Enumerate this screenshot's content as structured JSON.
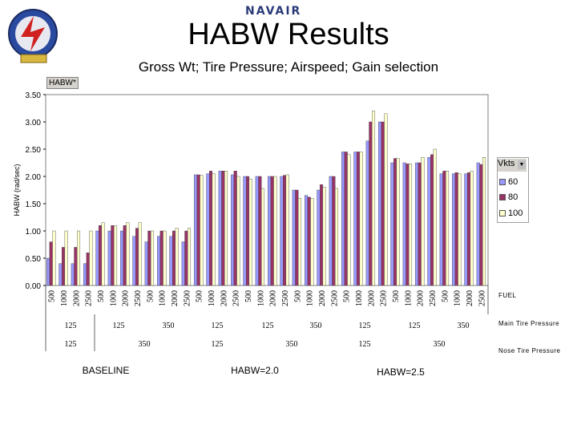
{
  "header": {
    "brand": "NAVAIR",
    "title": "HABW Results",
    "subtitle": "Gross Wt; Tire Pressure; Airspeed; Gain selection"
  },
  "controls": {
    "field_button": "HABW*",
    "legend_title": "Vkts"
  },
  "colors": {
    "s60": "#9999ff",
    "s80": "#993366",
    "s100": "#ffffcc"
  },
  "chart_data": {
    "type": "bar",
    "ylabel": "HABW (rad/sec)",
    "ylim": [
      0,
      3.5
    ],
    "yticks": [
      "0.00",
      "0.50",
      "1.00",
      "1.50",
      "2.00",
      "2.50",
      "3.00",
      "3.50"
    ],
    "categories": [
      "500",
      "1000",
      "2000",
      "2500",
      "500",
      "1000",
      "2000",
      "2500",
      "500",
      "1000",
      "2000",
      "2500",
      "500",
      "1000",
      "2000",
      "2500",
      "500",
      "1000",
      "2000",
      "2500",
      "500",
      "1000",
      "2000",
      "2500",
      "500",
      "1000",
      "2000",
      "2500",
      "500",
      "1000",
      "2000",
      "2500",
      "500",
      "1000",
      "2000",
      "2500"
    ],
    "series": [
      {
        "name": "60",
        "values": [
          0.5,
          0.4,
          0.4,
          0.4,
          1.0,
          1.0,
          1.0,
          0.9,
          0.8,
          0.9,
          0.9,
          0.8,
          2.03,
          2.05,
          2.1,
          2.03,
          2.0,
          2.0,
          2.0,
          2.0,
          1.75,
          1.65,
          1.75,
          2.0,
          2.45,
          2.45,
          2.65,
          3.0,
          2.25,
          2.25,
          2.25,
          2.35,
          2.05,
          2.05,
          2.05,
          2.25
        ]
      },
      {
        "name": "80",
        "values": [
          0.8,
          0.7,
          0.7,
          0.6,
          1.1,
          1.1,
          1.1,
          1.05,
          1.0,
          1.0,
          1.0,
          1.0,
          2.03,
          2.1,
          2.1,
          2.1,
          2.0,
          2.0,
          2.0,
          2.02,
          1.75,
          1.62,
          1.85,
          2.0,
          2.45,
          2.45,
          3.0,
          3.0,
          2.33,
          2.23,
          2.25,
          2.4,
          2.1,
          2.07,
          2.07,
          2.22
        ]
      },
      {
        "name": "100",
        "values": [
          1.0,
          1.0,
          1.0,
          1.0,
          1.15,
          1.1,
          1.15,
          1.15,
          1.0,
          1.0,
          1.05,
          1.05,
          2.02,
          2.05,
          2.1,
          2.0,
          1.95,
          1.78,
          2.0,
          2.03,
          1.6,
          1.6,
          1.8,
          1.78,
          2.4,
          2.45,
          3.2,
          3.15,
          2.33,
          2.23,
          2.35,
          2.5,
          2.1,
          2.05,
          2.1,
          2.35
        ]
      }
    ],
    "legend": [
      "60",
      "80",
      "100"
    ],
    "legend_position": "right",
    "grid": false,
    "row_labels": {
      "fuel": "FUEL",
      "main": "Main Tire Pressure",
      "nose": "Nose Tire Pressure"
    },
    "main_tire_labels": [
      "125",
      "125",
      "350",
      "125",
      "125",
      "350",
      "125",
      "125",
      "350"
    ],
    "nose_tire_labels": [
      "125",
      "350",
      "125",
      "350",
      "125",
      "350"
    ],
    "groups": [
      "BASELINE",
      "HABW=2.0",
      "HABW=2.5"
    ]
  }
}
